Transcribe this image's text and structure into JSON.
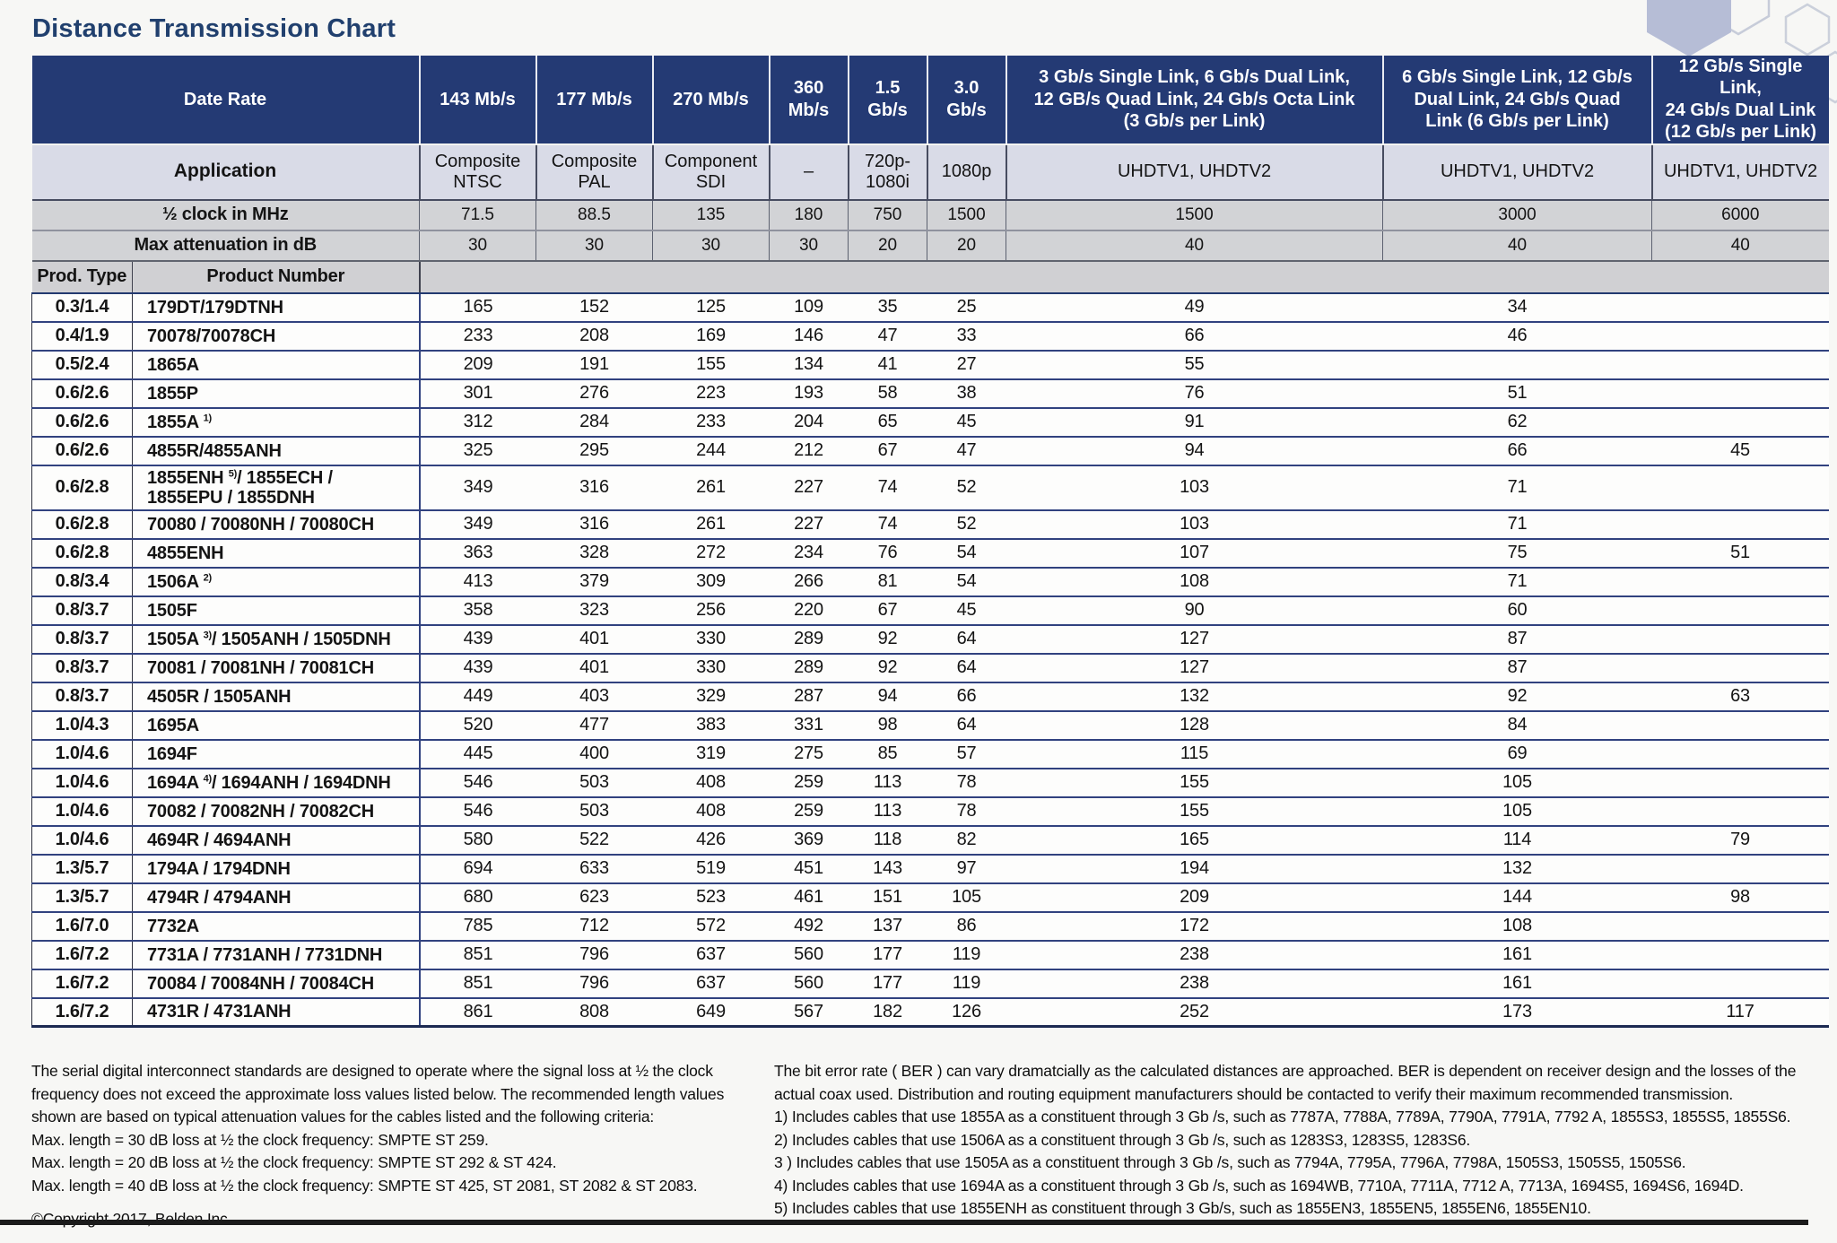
{
  "title": "Distance Transmission Chart",
  "colors": {
    "header_navy": "#243a74",
    "row_line_navy": "#31427f",
    "application_row_bg": "#d9dbe7",
    "gray_row_bg": "#d2d3d6",
    "title_blue": "#21406e",
    "hexagon_fill": "#b6bdd6"
  },
  "table": {
    "header": {
      "date_rate_label": "Date Rate",
      "application_label": "Application",
      "clock_label": "½ clock in MHz",
      "attenuation_label": "Max attenuation in dB",
      "prod_type_label": "Prod. Type",
      "product_number_label": "Product Number",
      "rate_columns": [
        "143 Mb/s",
        "177 Mb/s",
        "270 Mb/s",
        "360\nMb/s",
        "1.5\nGb/s",
        "3.0\nGb/s",
        "3 Gb/s Single Link, 6 Gb/s Dual Link,\n12 GB/s Quad Link, 24 Gb/s Octa Link\n(3 Gb/s per Link)",
        "6 Gb/s Single Link, 12 Gb/s\nDual Link, 24 Gb/s Quad\nLink (6 Gb/s per Link)",
        "12 Gb/s Single Link,\n24 Gb/s Dual Link\n(12 Gb/s per Link)"
      ],
      "applications": [
        "Composite\nNTSC",
        "Composite\nPAL",
        "Component\nSDI",
        "–",
        "720p-\n1080i",
        "1080p",
        "UHDTV1, UHDTV2",
        "UHDTV1, UHDTV2",
        "UHDTV1, UHDTV2"
      ],
      "clock_values": [
        "71.5",
        "88.5",
        "135",
        "180",
        "750",
        "1500",
        "1500",
        "3000",
        "6000"
      ],
      "attenuation_values": [
        "30",
        "30",
        "30",
        "30",
        "20",
        "20",
        "40",
        "40",
        "40"
      ]
    },
    "rows": [
      {
        "type": "0.3/1.4",
        "product": "179DT/179DTNH",
        "values": [
          "165",
          "152",
          "125",
          "109",
          "35",
          "25",
          "49",
          "34",
          ""
        ]
      },
      {
        "type": "0.4/1.9",
        "product": "70078/70078CH",
        "values": [
          "233",
          "208",
          "169",
          "146",
          "47",
          "33",
          "66",
          "46",
          ""
        ]
      },
      {
        "type": "0.5/2.4",
        "product": "1865A",
        "values": [
          "209",
          "191",
          "155",
          "134",
          "41",
          "27",
          "55",
          "",
          ""
        ]
      },
      {
        "type": "0.6/2.6",
        "product": "1855P",
        "values": [
          "301",
          "276",
          "223",
          "193",
          "58",
          "38",
          "76",
          "51",
          ""
        ]
      },
      {
        "type": "0.6/2.6",
        "product": "1855A ^1)^",
        "values": [
          "312",
          "284",
          "233",
          "204",
          "65",
          "45",
          "91",
          "62",
          ""
        ]
      },
      {
        "type": "0.6/2.6",
        "product": "4855R/4855ANH",
        "values": [
          "325",
          "295",
          "244",
          "212",
          "67",
          "47",
          "94",
          "66",
          "45"
        ]
      },
      {
        "type": "0.6/2.8",
        "product": "1855ENH ^5)^/ 1855ECH /\n1855EPU / 1855DNH",
        "tall": true,
        "values": [
          "349",
          "316",
          "261",
          "227",
          "74",
          "52",
          "103",
          "71",
          ""
        ]
      },
      {
        "type": "0.6/2.8",
        "product": "70080 / 70080NH / 70080CH",
        "values": [
          "349",
          "316",
          "261",
          "227",
          "74",
          "52",
          "103",
          "71",
          ""
        ]
      },
      {
        "type": "0.6/2.8",
        "product": "4855ENH",
        "values": [
          "363",
          "328",
          "272",
          "234",
          "76",
          "54",
          "107",
          "75",
          "51"
        ]
      },
      {
        "type": "0.8/3.4",
        "product": "1506A ^2)^",
        "values": [
          "413",
          "379",
          "309",
          "266",
          "81",
          "54",
          "108",
          "71",
          ""
        ]
      },
      {
        "type": "0.8/3.7",
        "product": "1505F",
        "values": [
          "358",
          "323",
          "256",
          "220",
          "67",
          "45",
          "90",
          "60",
          ""
        ]
      },
      {
        "type": "0.8/3.7",
        "product": "1505A ^3)^/ 1505ANH / 1505DNH",
        "values": [
          "439",
          "401",
          "330",
          "289",
          "92",
          "64",
          "127",
          "87",
          ""
        ]
      },
      {
        "type": "0.8/3.7",
        "product": "70081 / 70081NH / 70081CH",
        "values": [
          "439",
          "401",
          "330",
          "289",
          "92",
          "64",
          "127",
          "87",
          ""
        ]
      },
      {
        "type": "0.8/3.7",
        "product": "4505R / 1505ANH",
        "values": [
          "449",
          "403",
          "329",
          "287",
          "94",
          "66",
          "132",
          "92",
          "63"
        ]
      },
      {
        "type": "1.0/4.3",
        "product": "1695A",
        "values": [
          "520",
          "477",
          "383",
          "331",
          "98",
          "64",
          "128",
          "84",
          ""
        ]
      },
      {
        "type": "1.0/4.6",
        "product": "1694F",
        "values": [
          "445",
          "400",
          "319",
          "275",
          "85",
          "57",
          "115",
          "69",
          ""
        ]
      },
      {
        "type": "1.0/4.6",
        "product": "1694A ^4)^/ 1694ANH / 1694DNH",
        "values": [
          "546",
          "503",
          "408",
          "259",
          "113",
          "78",
          "155",
          "105",
          ""
        ]
      },
      {
        "type": "1.0/4.6",
        "product": "70082 / 70082NH / 70082CH",
        "values": [
          "546",
          "503",
          "408",
          "259",
          "113",
          "78",
          "155",
          "105",
          ""
        ]
      },
      {
        "type": "1.0/4.6",
        "product": "4694R / 4694ANH",
        "values": [
          "580",
          "522",
          "426",
          "369",
          "118",
          "82",
          "165",
          "114",
          "79"
        ]
      },
      {
        "type": "1.3/5.7",
        "product": "1794A / 1794DNH",
        "values": [
          "694",
          "633",
          "519",
          "451",
          "143",
          "97",
          "194",
          "132",
          ""
        ]
      },
      {
        "type": "1.3/5.7",
        "product": "4794R / 4794ANH",
        "values": [
          "680",
          "623",
          "523",
          "461",
          "151",
          "105",
          "209",
          "144",
          "98"
        ]
      },
      {
        "type": "1.6/7.0",
        "product": "7732A",
        "values": [
          "785",
          "712",
          "572",
          "492",
          "137",
          "86",
          "172",
          "108",
          ""
        ]
      },
      {
        "type": "1.6/7.2",
        "product": "7731A / 7731ANH / 7731DNH",
        "values": [
          "851",
          "796",
          "637",
          "560",
          "177",
          "119",
          "238",
          "161",
          ""
        ]
      },
      {
        "type": "1.6/7.2",
        "product": "70084 / 70084NH / 70084CH",
        "values": [
          "851",
          "796",
          "637",
          "560",
          "177",
          "119",
          "238",
          "161",
          ""
        ]
      },
      {
        "type": "1.6/7.2",
        "product": "4731R / 4731ANH",
        "values": [
          "861",
          "808",
          "649",
          "567",
          "182",
          "126",
          "252",
          "173",
          "117"
        ]
      }
    ]
  },
  "footer": {
    "left_paragraph": "The serial digital interconnect standards are designed to operate where the signal loss at ½ the clock frequency does not exceed the approximate loss values listed below. The recommended length values shown are based on typical attenuation values for the cables listed and the following criteria:",
    "criteria": [
      "Max. length = 30 dB loss at ½ the clock frequency: SMPTE ST 259.",
      "Max. length = 20 dB loss at ½ the clock frequency: SMPTE ST 292 & ST 424.",
      "Max. length = 40 dB loss at ½ the clock frequency: SMPTE ST 425, ST 2081, ST 2082 & ST 2083."
    ],
    "copyright": "©Copyright 2017, Belden Inc.",
    "right_paragraph": "The bit error rate ( BER ) can vary dramatcially as the calculated distances are approached. BER is dependent on receiver design and the losses of the actual coax used. Distribution and routing equipment manufacturers should be contacted to verify their maximum recommended transmission.",
    "notes": [
      "1) Includes cables that use 1855A as a constituent through 3 Gb /s, such as 7787A, 7788A, 7789A, 7790A, 7791A, 7792 A, 1855S3, 1855S5, 1855S6.",
      "2) Includes cables that use 1506A as a constituent through 3 Gb /s, such as 1283S3, 1283S5, 1283S6.",
      "3 ) Includes cables that use 1505A as a constituent through 3 Gb /s, such as 7794A, 7795A, 7796A, 7798A, 1505S3, 1505S5, 1505S6.",
      "4) Includes cables that use 1694A as a constituent through 3 Gb /s, such as 1694WB, 7710A, 7711A, 7712 A, 7713A, 1694S5, 1694S6, 1694D.",
      "5) Includes cables that use 1855ENH as constituent through 3 Gb/s, such as 1855EN3, 1855EN5, 1855EN6, 1855EN10."
    ]
  }
}
